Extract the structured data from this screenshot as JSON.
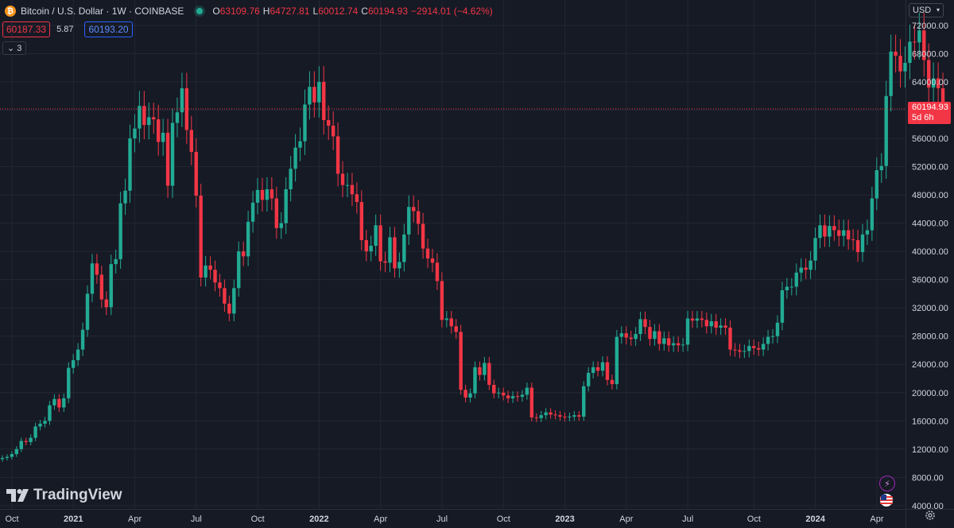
{
  "symbol": {
    "coin_glyph": "₿",
    "title": "Bitcoin / U.S. Dollar · 1W · COINBASE",
    "status_color": "#22ab94"
  },
  "ohlc": {
    "o_label": "O",
    "o": "63109.76",
    "h_label": "H",
    "h": "64727.81",
    "l_label": "L",
    "l": "60012.74",
    "c_label": "C",
    "c": "60194.93",
    "change": "−2914.01 (−4.62%)"
  },
  "trade": {
    "sell": "60187.33",
    "spread": "5.87",
    "buy": "60193.20"
  },
  "indicators_toggle": {
    "glyph": "⌄",
    "count": "3"
  },
  "currency": {
    "label": "USD",
    "arrow": "▾"
  },
  "last_price": {
    "value": "60194.93",
    "countdown": "5d 6h"
  },
  "logo": {
    "text": "TradingView"
  },
  "icons": [
    "tradingview-logo-icon",
    "lightning-icon",
    "us-flag-icon",
    "settings-gear-icon",
    "chevron-down-icon"
  ],
  "colors": {
    "up": "#22ab94",
    "down": "#f23645",
    "background": "#161a25",
    "grid": "#232733",
    "axis_text": "#d1d4dc",
    "last_price_line": "#f23645"
  },
  "chart_data": {
    "type": "candlestick",
    "interval": "1W",
    "ylim": [
      2000,
      74000
    ],
    "y_ticks": [
      "72000.00",
      "68000.00",
      "64000.00",
      "60000.00",
      "56000.00",
      "52000.00",
      "48000.00",
      "44000.00",
      "40000.00",
      "36000.00",
      "32000.00",
      "28000.00",
      "24000.00",
      "20000.00",
      "16000.00",
      "12000.00",
      "8000.00",
      "4000.00"
    ],
    "x_ticks": [
      "Oct",
      "2021",
      "Apr",
      "Jul",
      "Oct",
      "2022",
      "Apr",
      "Jul",
      "Oct",
      "2023",
      "Apr",
      "Jul",
      "Oct",
      "2024",
      "Apr"
    ],
    "x_tick_week_index": [
      0,
      13,
      26,
      39,
      52,
      65,
      78,
      91,
      104,
      117,
      130,
      143,
      157,
      170,
      183
    ],
    "last_price": 60194.93,
    "closes": [
      10750,
      10900,
      11300,
      12000,
      13150,
      13000,
      13600,
      15200,
      15600,
      16000,
      18200,
      19100,
      17900,
      19200,
      23500,
      24600,
      26100,
      28900,
      34000,
      38300,
      36700,
      33200,
      32100,
      38200,
      38900,
      46800,
      48600,
      56000,
      57400,
      60600,
      57900,
      59000,
      58700,
      55500,
      56800,
      49300,
      58200,
      59700,
      63100,
      57200,
      54100,
      47900,
      36300,
      38000,
      37400,
      35600,
      34800,
      32600,
      31200,
      34800,
      40000,
      39300,
      44200,
      46900,
      48700,
      47300,
      48800,
      47500,
      43300,
      44000,
      48800,
      51700,
      54700,
      55600,
      60800,
      63300,
      61100,
      64000,
      58600,
      57800,
      56300,
      51000,
      49400,
      49400,
      48100,
      47000,
      41600,
      40000,
      40800,
      43700,
      38600,
      38400,
      42000,
      37600,
      38500,
      42400,
      46300,
      45700,
      43900,
      40400,
      39000,
      38400,
      35800,
      30300,
      30500,
      29400,
      28600,
      20400,
      19300,
      19900,
      23600,
      22500,
      24200,
      21100,
      19900,
      20000,
      19600,
      19200,
      19500,
      19400,
      19700,
      20700,
      16500,
      16400,
      16800,
      17200,
      16900,
      16800,
      16600,
      16500,
      16600,
      16800,
      16600,
      20900,
      22800,
      23600,
      23100,
      24300,
      21800,
      21200,
      27900,
      28400,
      27800,
      27600,
      28300,
      30400,
      29300,
      27600,
      28700,
      26900,
      27700,
      26700,
      27000,
      26700,
      26800,
      30500,
      30200,
      30500,
      30300,
      29400,
      30100,
      29200,
      29500,
      29200,
      26100,
      26000,
      25800,
      25900,
      26600,
      26300,
      26100,
      26900,
      27900,
      28000,
      29900,
      34500,
      35000,
      35000,
      37000,
      37700,
      37400,
      38700,
      41900,
      43700,
      42100,
      43600,
      43000,
      42200,
      43000,
      41700,
      41600,
      39900,
      42400,
      43000,
      47500,
      51500,
      52100,
      62000,
      68300,
      67700,
      65500,
      66700,
      69700,
      69600,
      71300,
      67100,
      63200,
      64500,
      63100,
      60195
    ]
  }
}
